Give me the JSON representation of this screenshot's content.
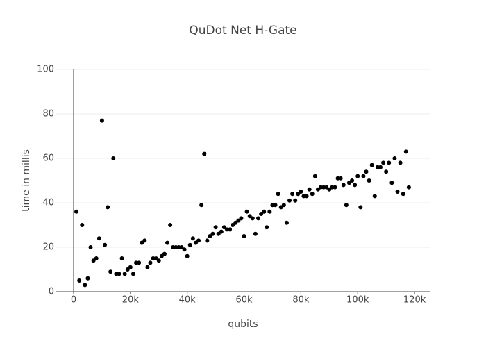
{
  "chart_data": {
    "type": "scatter",
    "title": "QuDot Net H-Gate",
    "x_label": "qubits",
    "y_label": "time in millis",
    "x": [
      1000,
      2000,
      3000,
      4000,
      5000,
      6000,
      7000,
      8000,
      9000,
      10000,
      11000,
      12000,
      13000,
      14000,
      15000,
      16000,
      17000,
      18000,
      19000,
      20000,
      21000,
      22000,
      23000,
      24000,
      25000,
      26000,
      27000,
      28000,
      29000,
      30000,
      31000,
      32000,
      33000,
      34000,
      35000,
      36000,
      37000,
      38000,
      39000,
      40000,
      41000,
      42000,
      43000,
      44000,
      45000,
      46000,
      47000,
      48000,
      49000,
      50000,
      51000,
      52000,
      53000,
      54000,
      55000,
      56000,
      57000,
      58000,
      59000,
      60000,
      61000,
      62000,
      63000,
      64000,
      65000,
      66000,
      67000,
      68000,
      69000,
      70000,
      71000,
      72000,
      73000,
      74000,
      75000,
      76000,
      77000,
      78000,
      79000,
      80000,
      81000,
      82000,
      83000,
      84000,
      85000,
      86000,
      87000,
      88000,
      89000,
      90000,
      91000,
      92000,
      93000,
      94000,
      95000,
      96000,
      97000,
      98000,
      99000,
      100000,
      101000,
      102000,
      103000,
      104000,
      105000,
      106000,
      107000,
      108000,
      109000,
      110000,
      111000,
      112000,
      113000,
      114000,
      115000,
      116000,
      117000,
      118000
    ],
    "series": [
      {
        "name": "time",
        "color": "#000000",
        "values": [
          36,
          5,
          30,
          3,
          6,
          20,
          14,
          15,
          24,
          77,
          21,
          38,
          9,
          60,
          8,
          8,
          15,
          8,
          10,
          11,
          8,
          13,
          13,
          22,
          23,
          11,
          13,
          15,
          15,
          14,
          16,
          17,
          22,
          30,
          20,
          20,
          20,
          20,
          19,
          16,
          21,
          24,
          22,
          23,
          39,
          62,
          23,
          25,
          26,
          29,
          26,
          27,
          29,
          28,
          28,
          30,
          31,
          32,
          33,
          25,
          36,
          34,
          33,
          26,
          33,
          35,
          36,
          29,
          36,
          39,
          39,
          44,
          38,
          39,
          31,
          41,
          44,
          41,
          44,
          45,
          43,
          43,
          46,
          44,
          52,
          46,
          47,
          47,
          47,
          46,
          47,
          47,
          51,
          51,
          48,
          39,
          49,
          50,
          48,
          52,
          38,
          52,
          54,
          50,
          57,
          43,
          56,
          56,
          58,
          54,
          58,
          49,
          60,
          45,
          58,
          44,
          63,
          47
        ]
      }
    ],
    "xlim": [
      -6350,
      125600
    ],
    "ylim": [
      0,
      100
    ],
    "xticks": [
      0,
      {
        "value": 20000,
        "label": "20k"
      },
      {
        "value": 40000,
        "label": "40k"
      },
      {
        "value": 60000,
        "label": "60k"
      },
      {
        "value": 80000,
        "label": "80k"
      },
      {
        "value": 100000,
        "label": "100k"
      },
      {
        "value": 120000,
        "label": "120k"
      }
    ],
    "yticks": [
      0,
      20,
      40,
      60,
      80,
      100
    ],
    "grid": true
  }
}
